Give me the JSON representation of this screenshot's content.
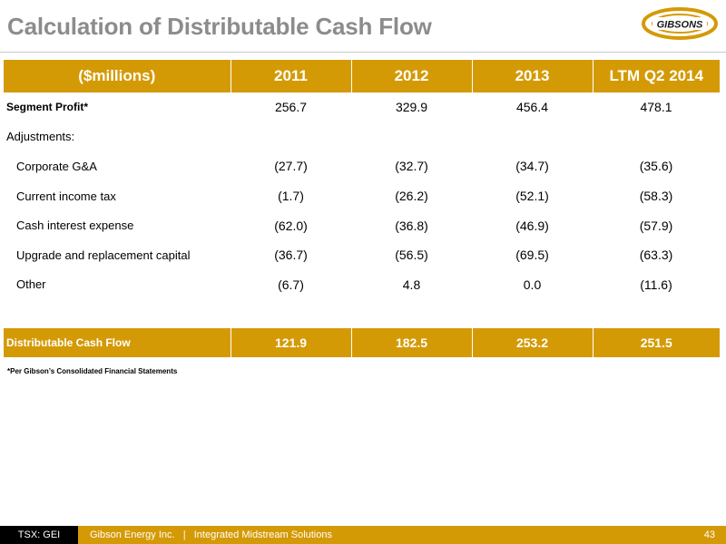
{
  "header": {
    "title": "Calculation of Distributable Cash Flow",
    "logo_text": "GIBSONS"
  },
  "table": {
    "columns": [
      "($millions)",
      "2011",
      "2012",
      "2013",
      "LTM Q2 2014"
    ],
    "rows": [
      {
        "label": "Segment Profit*",
        "values": [
          "256.7",
          "329.9",
          "456.4",
          "478.1"
        ]
      },
      {
        "label": "Adjustments:",
        "values": [
          "",
          "",
          "",
          ""
        ]
      },
      {
        "label": "Corporate G&A",
        "values": [
          "(27.7)",
          "(32.7)",
          "(34.7)",
          "(35.6)"
        ]
      },
      {
        "label": "Current income tax",
        "values": [
          "(1.7)",
          "(26.2)",
          "(52.1)",
          "(58.3)"
        ]
      },
      {
        "label": "Cash interest expense",
        "values": [
          "(62.0)",
          "(36.8)",
          "(46.9)",
          "(57.9)"
        ]
      },
      {
        "label": "Upgrade and replacement capital",
        "values": [
          "(36.7)",
          "(56.5)",
          "(69.5)",
          "(63.3)"
        ]
      },
      {
        "label": "Other",
        "values": [
          "(6.7)",
          "4.8",
          "0.0",
          "(11.6)"
        ]
      }
    ],
    "total": {
      "label": "Distributable Cash Flow",
      "values": [
        "121.9",
        "182.5",
        "253.2",
        "251.5"
      ]
    }
  },
  "footnote": "*Per Gibson’s Consolidated Financial Statements",
  "footer": {
    "ticker": "TSX: GEI",
    "text": "Gibson Energy Inc.   |   Integrated Midstream Solutions",
    "page": "43"
  },
  "colors": {
    "accent": "#d49a06",
    "title": "#8c8c8c",
    "footer_ticker_bg": "#000000"
  }
}
